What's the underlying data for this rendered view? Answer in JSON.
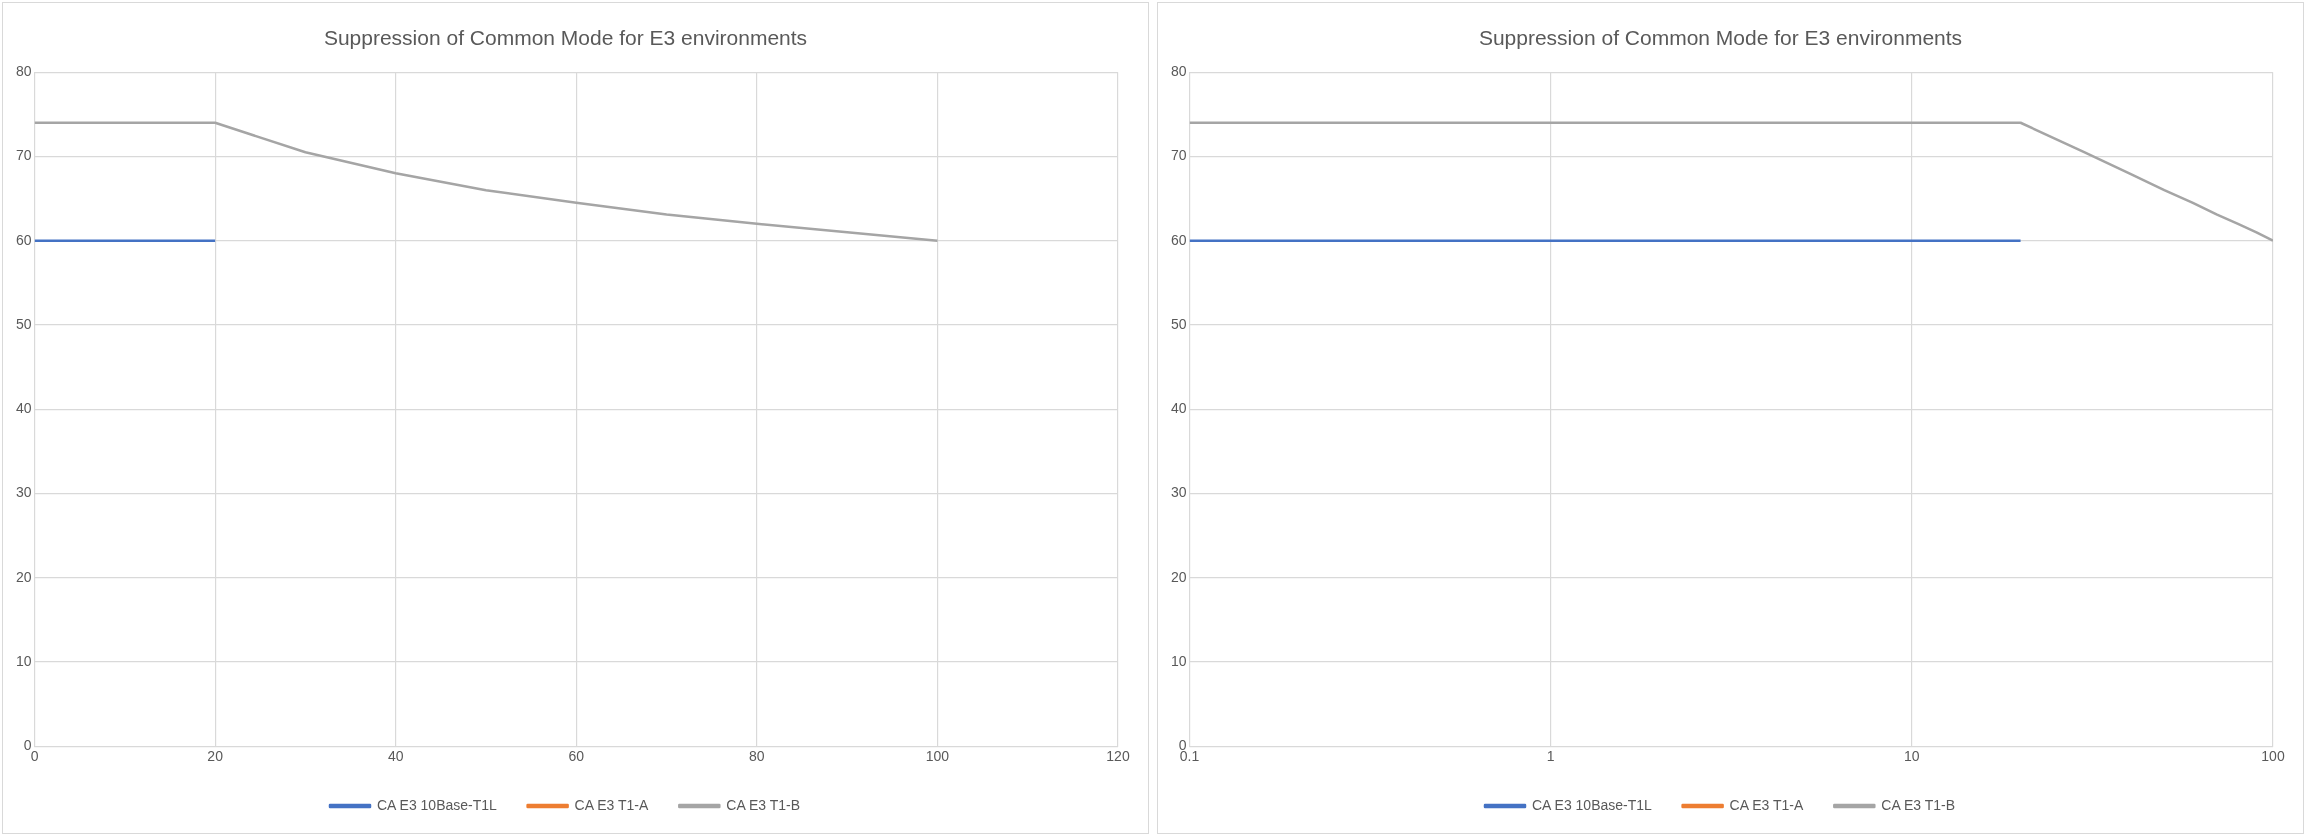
{
  "chart_data": [
    {
      "type": "line",
      "title": "Suppression of Common Mode for E3 environments",
      "xlim": [
        0,
        120
      ],
      "xticks": [
        0,
        20,
        40,
        60,
        80,
        100,
        120
      ],
      "ylim": [
        0,
        80
      ],
      "yticks": [
        0,
        10,
        20,
        30,
        40,
        50,
        60,
        70,
        80
      ],
      "grid": true,
      "legend": "bottom",
      "marker": "none",
      "series": [
        {
          "name": "CA E3 10Base-T1L",
          "color": "#4472c4",
          "x": [
            0,
            20
          ],
          "values": [
            60,
            60
          ]
        },
        {
          "name": "CA E3 T1-A",
          "color": "#ed7d31"
        },
        {
          "name": "CA E3 T1-B",
          "color": "#a5a5a5",
          "x": [
            0,
            20,
            30,
            40,
            50,
            60,
            70,
            80,
            90,
            100
          ],
          "values": [
            74,
            74,
            70.5,
            68,
            66,
            64.5,
            63.1,
            62,
            61,
            60
          ]
        }
      ]
    },
    {
      "type": "line",
      "title": "Suppression of Common Mode for E3 environments",
      "log": "x",
      "xlim": [
        0.1,
        100
      ],
      "xticks": [
        0.1,
        1,
        10,
        100
      ],
      "ylim": [
        0,
        80
      ],
      "yticks": [
        0,
        10,
        20,
        30,
        40,
        50,
        60,
        70,
        80
      ],
      "grid": true,
      "legend": "bottom",
      "marker": "none",
      "series": [
        {
          "name": "CA E3 10Base-T1L",
          "color": "#4472c4",
          "x": [
            0.1,
            20
          ],
          "values": [
            60,
            60
          ]
        },
        {
          "name": "CA E3 T1-A",
          "color": "#ed7d31"
        },
        {
          "name": "CA E3 T1-B",
          "color": "#a5a5a5",
          "x": [
            0.1,
            20,
            30,
            40,
            50,
            60,
            70,
            80,
            90,
            100
          ],
          "values": [
            74,
            74,
            70.5,
            68,
            66,
            64.5,
            63.1,
            62,
            61,
            60
          ]
        }
      ]
    }
  ]
}
